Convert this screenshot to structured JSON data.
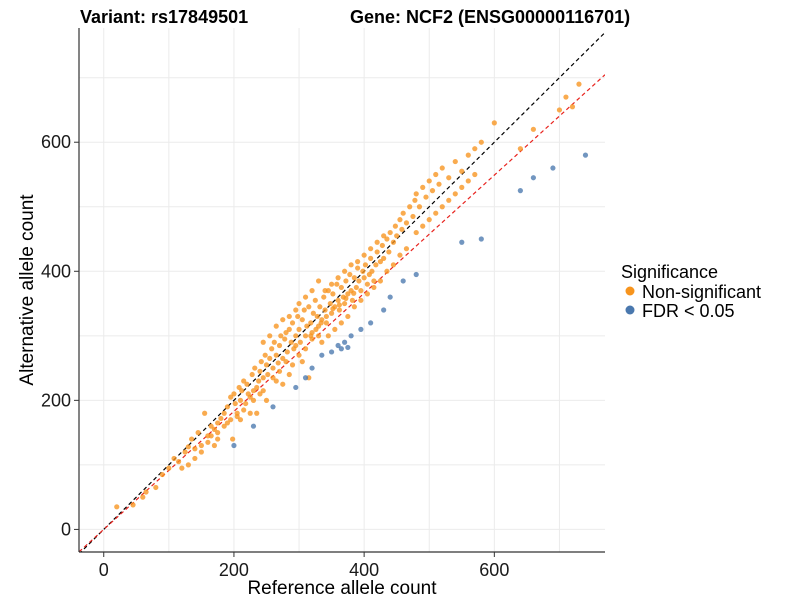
{
  "chart_data": {
    "type": "scatter",
    "title_left": "Variant: rs17849501",
    "title_right": "Gene: NCF2 (ENSG00000116701)",
    "xlabel": "Reference allele count",
    "ylabel": "Alternative allele count",
    "xlim": [
      -38,
      770
    ],
    "ylim": [
      -35,
      777
    ],
    "xticks": [
      0,
      200,
      400,
      600
    ],
    "yticks": [
      0,
      200,
      400,
      600
    ],
    "grid": true,
    "legend": {
      "title": "Significance",
      "placement": "right",
      "entries": [
        {
          "label": "Non-significant",
          "color": "#F7941D"
        },
        {
          "label": "FDR < 0.05",
          "color": "#4A78AE"
        }
      ]
    },
    "reference_lines": [
      {
        "kind": "identity",
        "slope": 1.0,
        "intercept": 0,
        "color": "#000000",
        "dash": true
      },
      {
        "kind": "fit",
        "slope": 0.915,
        "intercept": 0,
        "color": "#E8231E",
        "dash": true
      }
    ],
    "series": [
      {
        "name": "Non-significant",
        "color": "#F7941D",
        "points": [
          [
            20,
            35
          ],
          [
            45,
            38
          ],
          [
            65,
            58
          ],
          [
            80,
            65
          ],
          [
            100,
            95
          ],
          [
            108,
            110
          ],
          [
            115,
            105
          ],
          [
            125,
            120
          ],
          [
            130,
            128
          ],
          [
            135,
            140
          ],
          [
            140,
            110
          ],
          [
            145,
            150
          ],
          [
            150,
            130
          ],
          [
            160,
            145
          ],
          [
            165,
            160
          ],
          [
            170,
            155
          ],
          [
            175,
            165
          ],
          [
            180,
            172
          ],
          [
            185,
            180
          ],
          [
            190,
            190
          ],
          [
            195,
            205
          ],
          [
            198,
            140
          ],
          [
            200,
            210
          ],
          [
            202,
            195
          ],
          [
            205,
            180
          ],
          [
            208,
            220
          ],
          [
            210,
            200
          ],
          [
            212,
            215
          ],
          [
            215,
            230
          ],
          [
            218,
            195
          ],
          [
            220,
            225
          ],
          [
            222,
            210
          ],
          [
            225,
            205
          ],
          [
            228,
            240
          ],
          [
            230,
            215
          ],
          [
            232,
            250
          ],
          [
            235,
            220
          ],
          [
            238,
            230
          ],
          [
            240,
            245
          ],
          [
            242,
            260
          ],
          [
            245,
            235
          ],
          [
            248,
            270
          ],
          [
            250,
            255
          ],
          [
            252,
            240
          ],
          [
            255,
            265
          ],
          [
            258,
            280
          ],
          [
            260,
            250
          ],
          [
            262,
            290
          ],
          [
            265,
            270
          ],
          [
            268,
            258
          ],
          [
            270,
            285
          ],
          [
            272,
            300
          ],
          [
            275,
            265
          ],
          [
            278,
            295
          ],
          [
            280,
            305
          ],
          [
            282,
            275
          ],
          [
            285,
            310
          ],
          [
            288,
            290
          ],
          [
            290,
            320
          ],
          [
            292,
            280
          ],
          [
            295,
            300
          ],
          [
            298,
            330
          ],
          [
            300,
            310
          ],
          [
            302,
            290
          ],
          [
            305,
            325
          ],
          [
            308,
            340
          ],
          [
            310,
            300
          ],
          [
            312,
            315
          ],
          [
            315,
            345
          ],
          [
            318,
            320
          ],
          [
            320,
            305
          ],
          [
            322,
            335
          ],
          [
            325,
            355
          ],
          [
            328,
            330
          ],
          [
            330,
            315
          ],
          [
            332,
            345
          ],
          [
            335,
            325
          ],
          [
            338,
            360
          ],
          [
            340,
            340
          ],
          [
            342,
            320
          ],
          [
            345,
            370
          ],
          [
            348,
            350
          ],
          [
            350,
            335
          ],
          [
            352,
            365
          ],
          [
            355,
            345
          ],
          [
            358,
            380
          ],
          [
            360,
            355
          ],
          [
            362,
            340
          ],
          [
            365,
            375
          ],
          [
            368,
            360
          ],
          [
            370,
            350
          ],
          [
            372,
            385
          ],
          [
            375,
            365
          ],
          [
            378,
            395
          ],
          [
            380,
            370
          ],
          [
            382,
            355
          ],
          [
            385,
            390
          ],
          [
            388,
            375
          ],
          [
            390,
            405
          ],
          [
            392,
            385
          ],
          [
            395,
            370
          ],
          [
            398,
            400
          ],
          [
            400,
            390
          ],
          [
            402,
            410
          ],
          [
            405,
            380
          ],
          [
            408,
            395
          ],
          [
            410,
            420
          ],
          [
            412,
            400
          ],
          [
            415,
            385
          ],
          [
            418,
            410
          ],
          [
            420,
            430
          ],
          [
            425,
            415
          ],
          [
            428,
            440
          ],
          [
            430,
            420
          ],
          [
            435,
            450
          ],
          [
            438,
            430
          ],
          [
            440,
            460
          ],
          [
            445,
            445
          ],
          [
            448,
            470
          ],
          [
            450,
            455
          ],
          [
            455,
            480
          ],
          [
            458,
            465
          ],
          [
            460,
            490
          ],
          [
            465,
            475
          ],
          [
            470,
            500
          ],
          [
            475,
            485
          ],
          [
            478,
            510
          ],
          [
            480,
            520
          ],
          [
            485,
            500
          ],
          [
            490,
            530
          ],
          [
            495,
            515
          ],
          [
            500,
            540
          ],
          [
            505,
            525
          ],
          [
            510,
            550
          ],
          [
            515,
            535
          ],
          [
            520,
            560
          ],
          [
            530,
            545
          ],
          [
            540,
            570
          ],
          [
            550,
            555
          ],
          [
            560,
            580
          ],
          [
            570,
            590
          ],
          [
            580,
            600
          ],
          [
            600,
            630
          ],
          [
            640,
            590
          ],
          [
            660,
            620
          ],
          [
            700,
            650
          ],
          [
            710,
            670
          ],
          [
            720,
            655
          ],
          [
            730,
            690
          ],
          [
            155,
            180
          ],
          [
            175,
            140
          ],
          [
            235,
            180
          ],
          [
            285,
            240
          ],
          [
            305,
            260
          ],
          [
            315,
            235
          ],
          [
            335,
            290
          ],
          [
            345,
            300
          ],
          [
            355,
            310
          ],
          [
            365,
            320
          ],
          [
            375,
            330
          ],
          [
            385,
            345
          ],
          [
            395,
            355
          ],
          [
            405,
            365
          ],
          [
            415,
            375
          ],
          [
            425,
            385
          ],
          [
            435,
            400
          ],
          [
            445,
            410
          ],
          [
            455,
            425
          ],
          [
            465,
            435
          ],
          [
            250,
            200
          ],
          [
            265,
            230
          ],
          [
            275,
            225
          ],
          [
            245,
            215
          ],
          [
            225,
            180
          ],
          [
            290,
            255
          ],
          [
            300,
            270
          ],
          [
            310,
            280
          ],
          [
            320,
            295
          ],
          [
            330,
            300
          ],
          [
            210,
            170
          ],
          [
            190,
            165
          ],
          [
            170,
            130
          ],
          [
            150,
            120
          ],
          [
            130,
            100
          ],
          [
            90,
            85
          ],
          [
            60,
            50
          ],
          [
            120,
            95
          ],
          [
            140,
            125
          ],
          [
            160,
            135
          ],
          [
            340,
            370
          ],
          [
            350,
            380
          ],
          [
            360,
            390
          ],
          [
            370,
            400
          ],
          [
            380,
            410
          ],
          [
            390,
            415
          ],
          [
            400,
            425
          ],
          [
            410,
            435
          ],
          [
            420,
            445
          ],
          [
            430,
            455
          ],
          [
            280,
            260
          ],
          [
            295,
            285
          ],
          [
            318,
            300
          ],
          [
            326,
            310
          ],
          [
            334,
            320
          ],
          [
            342,
            330
          ],
          [
            352,
            342
          ],
          [
            362,
            348
          ],
          [
            372,
            358
          ],
          [
            384,
            366
          ],
          [
            260,
            235
          ],
          [
            270,
            245
          ],
          [
            240,
            210
          ],
          [
            230,
            200
          ],
          [
            215,
            185
          ],
          [
            205,
            175
          ],
          [
            195,
            170
          ],
          [
            185,
            160
          ],
          [
            175,
            150
          ],
          [
            165,
            145
          ],
          [
            480,
            460
          ],
          [
            490,
            470
          ],
          [
            500,
            480
          ],
          [
            510,
            490
          ],
          [
            520,
            500
          ],
          [
            530,
            510
          ],
          [
            540,
            520
          ],
          [
            550,
            530
          ],
          [
            560,
            540
          ],
          [
            570,
            550
          ],
          [
            300,
            350
          ],
          [
            310,
            360
          ],
          [
            320,
            370
          ],
          [
            330,
            385
          ],
          [
            255,
            300
          ],
          [
            265,
            315
          ],
          [
            275,
            325
          ],
          [
            245,
            290
          ],
          [
            285,
            330
          ],
          [
            295,
            340
          ]
        ]
      },
      {
        "name": "FDR < 0.05",
        "color": "#4A78AE",
        "points": [
          [
            200,
            130
          ],
          [
            230,
            160
          ],
          [
            260,
            190
          ],
          [
            295,
            220
          ],
          [
            310,
            235
          ],
          [
            360,
            285
          ],
          [
            370,
            290
          ],
          [
            380,
            300
          ],
          [
            395,
            310
          ],
          [
            410,
            320
          ],
          [
            430,
            340
          ],
          [
            440,
            360
          ],
          [
            460,
            385
          ],
          [
            480,
            395
          ],
          [
            550,
            445
          ],
          [
            580,
            450
          ],
          [
            640,
            525
          ],
          [
            660,
            545
          ],
          [
            690,
            560
          ],
          [
            740,
            580
          ],
          [
            350,
            275
          ],
          [
            365,
            280
          ],
          [
            375,
            282
          ],
          [
            335,
            270
          ],
          [
            320,
            250
          ]
        ]
      }
    ]
  }
}
